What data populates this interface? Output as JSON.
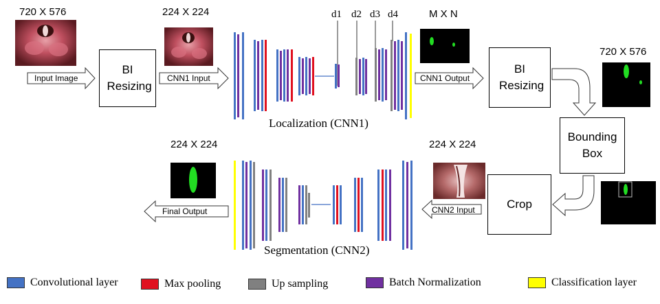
{
  "labels": {
    "dim_input": "720 X 576",
    "dim_cnn1_input": "224 X 224",
    "dim_mxn": "M X N",
    "dim_resized_720": "720 X 576",
    "dim_final": "224 X 224",
    "dim_cnn2_input": "224 X 224",
    "d1": "d1",
    "d2": "d2",
    "d3": "d3",
    "d4": "d4"
  },
  "boxes": {
    "bi_resizing_1": "BI Resizing",
    "bi_resizing_2": "BI Resizing",
    "bounding_box": "Bounding Box",
    "crop": "Crop"
  },
  "arrows": {
    "input_image": "Input Image",
    "cnn1_input": "CNN1 Input",
    "cnn1_output": "CNN1 Output",
    "final_output": "Final Output",
    "cnn2_input": "CNN2 Input"
  },
  "captions": {
    "localization": "Localization (CNN1)",
    "segmentation": "Segmentation (CNN2)"
  },
  "legend": [
    {
      "label": "Convolutional layer",
      "color": "#4472c4"
    },
    {
      "label": "Max pooling",
      "color": "#e0101f"
    },
    {
      "label": "Up sampling",
      "color": "#808080"
    },
    {
      "label": "Batch Normalization",
      "color": "#7030a0"
    },
    {
      "label": "Classification layer",
      "color": "#ffff00"
    }
  ],
  "colors": {
    "conv": "#4472c4",
    "pool": "#e0101f",
    "up": "#808080",
    "bn": "#7030a0",
    "cls": "#ffff00",
    "mask_green": "#22dd22"
  }
}
